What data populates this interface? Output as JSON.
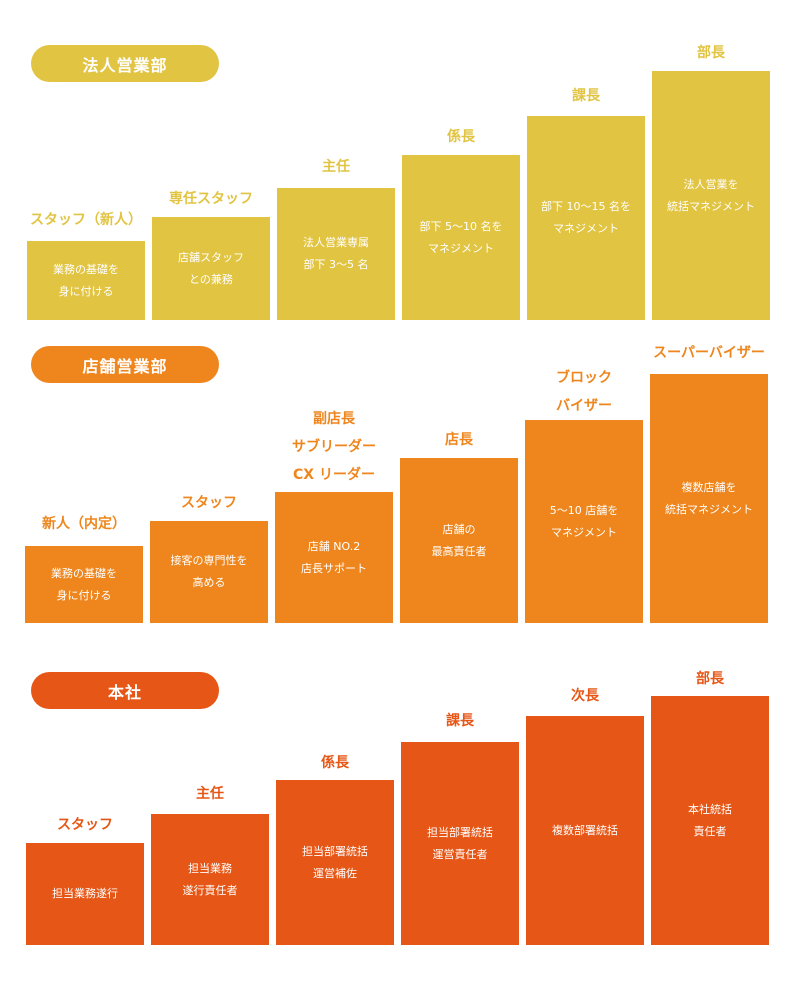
{
  "colors": {
    "corporate": "#E2C443",
    "store": "#EE861D",
    "hq": "#E65717"
  },
  "sections": [
    {
      "key": "corporate",
      "title": "法人営業部",
      "steps": [
        {
          "title": "スタッフ（新人）",
          "desc": "業務の基礎を\n身に付ける"
        },
        {
          "title": "専任スタッフ",
          "desc": "店舗スタッフ\nとの兼務"
        },
        {
          "title": "主任",
          "desc": "法人営業専属\n部下 3〜5 名"
        },
        {
          "title": "係長",
          "desc": "部下 5〜10 名を\nマネジメント"
        },
        {
          "title": "課長",
          "desc": "部下 10〜15 名を\nマネジメント"
        },
        {
          "title": "部長",
          "desc": "法人営業を\n統括マネジメント"
        }
      ]
    },
    {
      "key": "store",
      "title": "店舗営業部",
      "steps": [
        {
          "title": "新人（内定）",
          "desc": "業務の基礎を\n身に付ける"
        },
        {
          "title": "スタッフ",
          "desc": "接客の専門性を\n高める"
        },
        {
          "title": "副店長\nサブリーダー\nCX リーダー",
          "desc": "店舗 NO.2\n店長サポート"
        },
        {
          "title": "店長",
          "desc": "店舗の\n最高責任者"
        },
        {
          "title": "ブロック\nバイザー",
          "desc": "5〜10 店舗を\nマネジメント"
        },
        {
          "title": "スーパーバイザー",
          "desc": "複数店舗を\n統括マネジメント"
        }
      ]
    },
    {
      "key": "hq",
      "title": "本社",
      "steps": [
        {
          "title": "スタッフ",
          "desc": "担当業務遂行"
        },
        {
          "title": "主任",
          "desc": "担当業務\n遂行責任者"
        },
        {
          "title": "係長",
          "desc": "担当部署統括\n運営補佐"
        },
        {
          "title": "課長",
          "desc": "担当部署統括\n運営責任者"
        },
        {
          "title": "次長",
          "desc": "複数部署統括"
        },
        {
          "title": "部長",
          "desc": "本社統括\n責任者"
        }
      ]
    }
  ]
}
